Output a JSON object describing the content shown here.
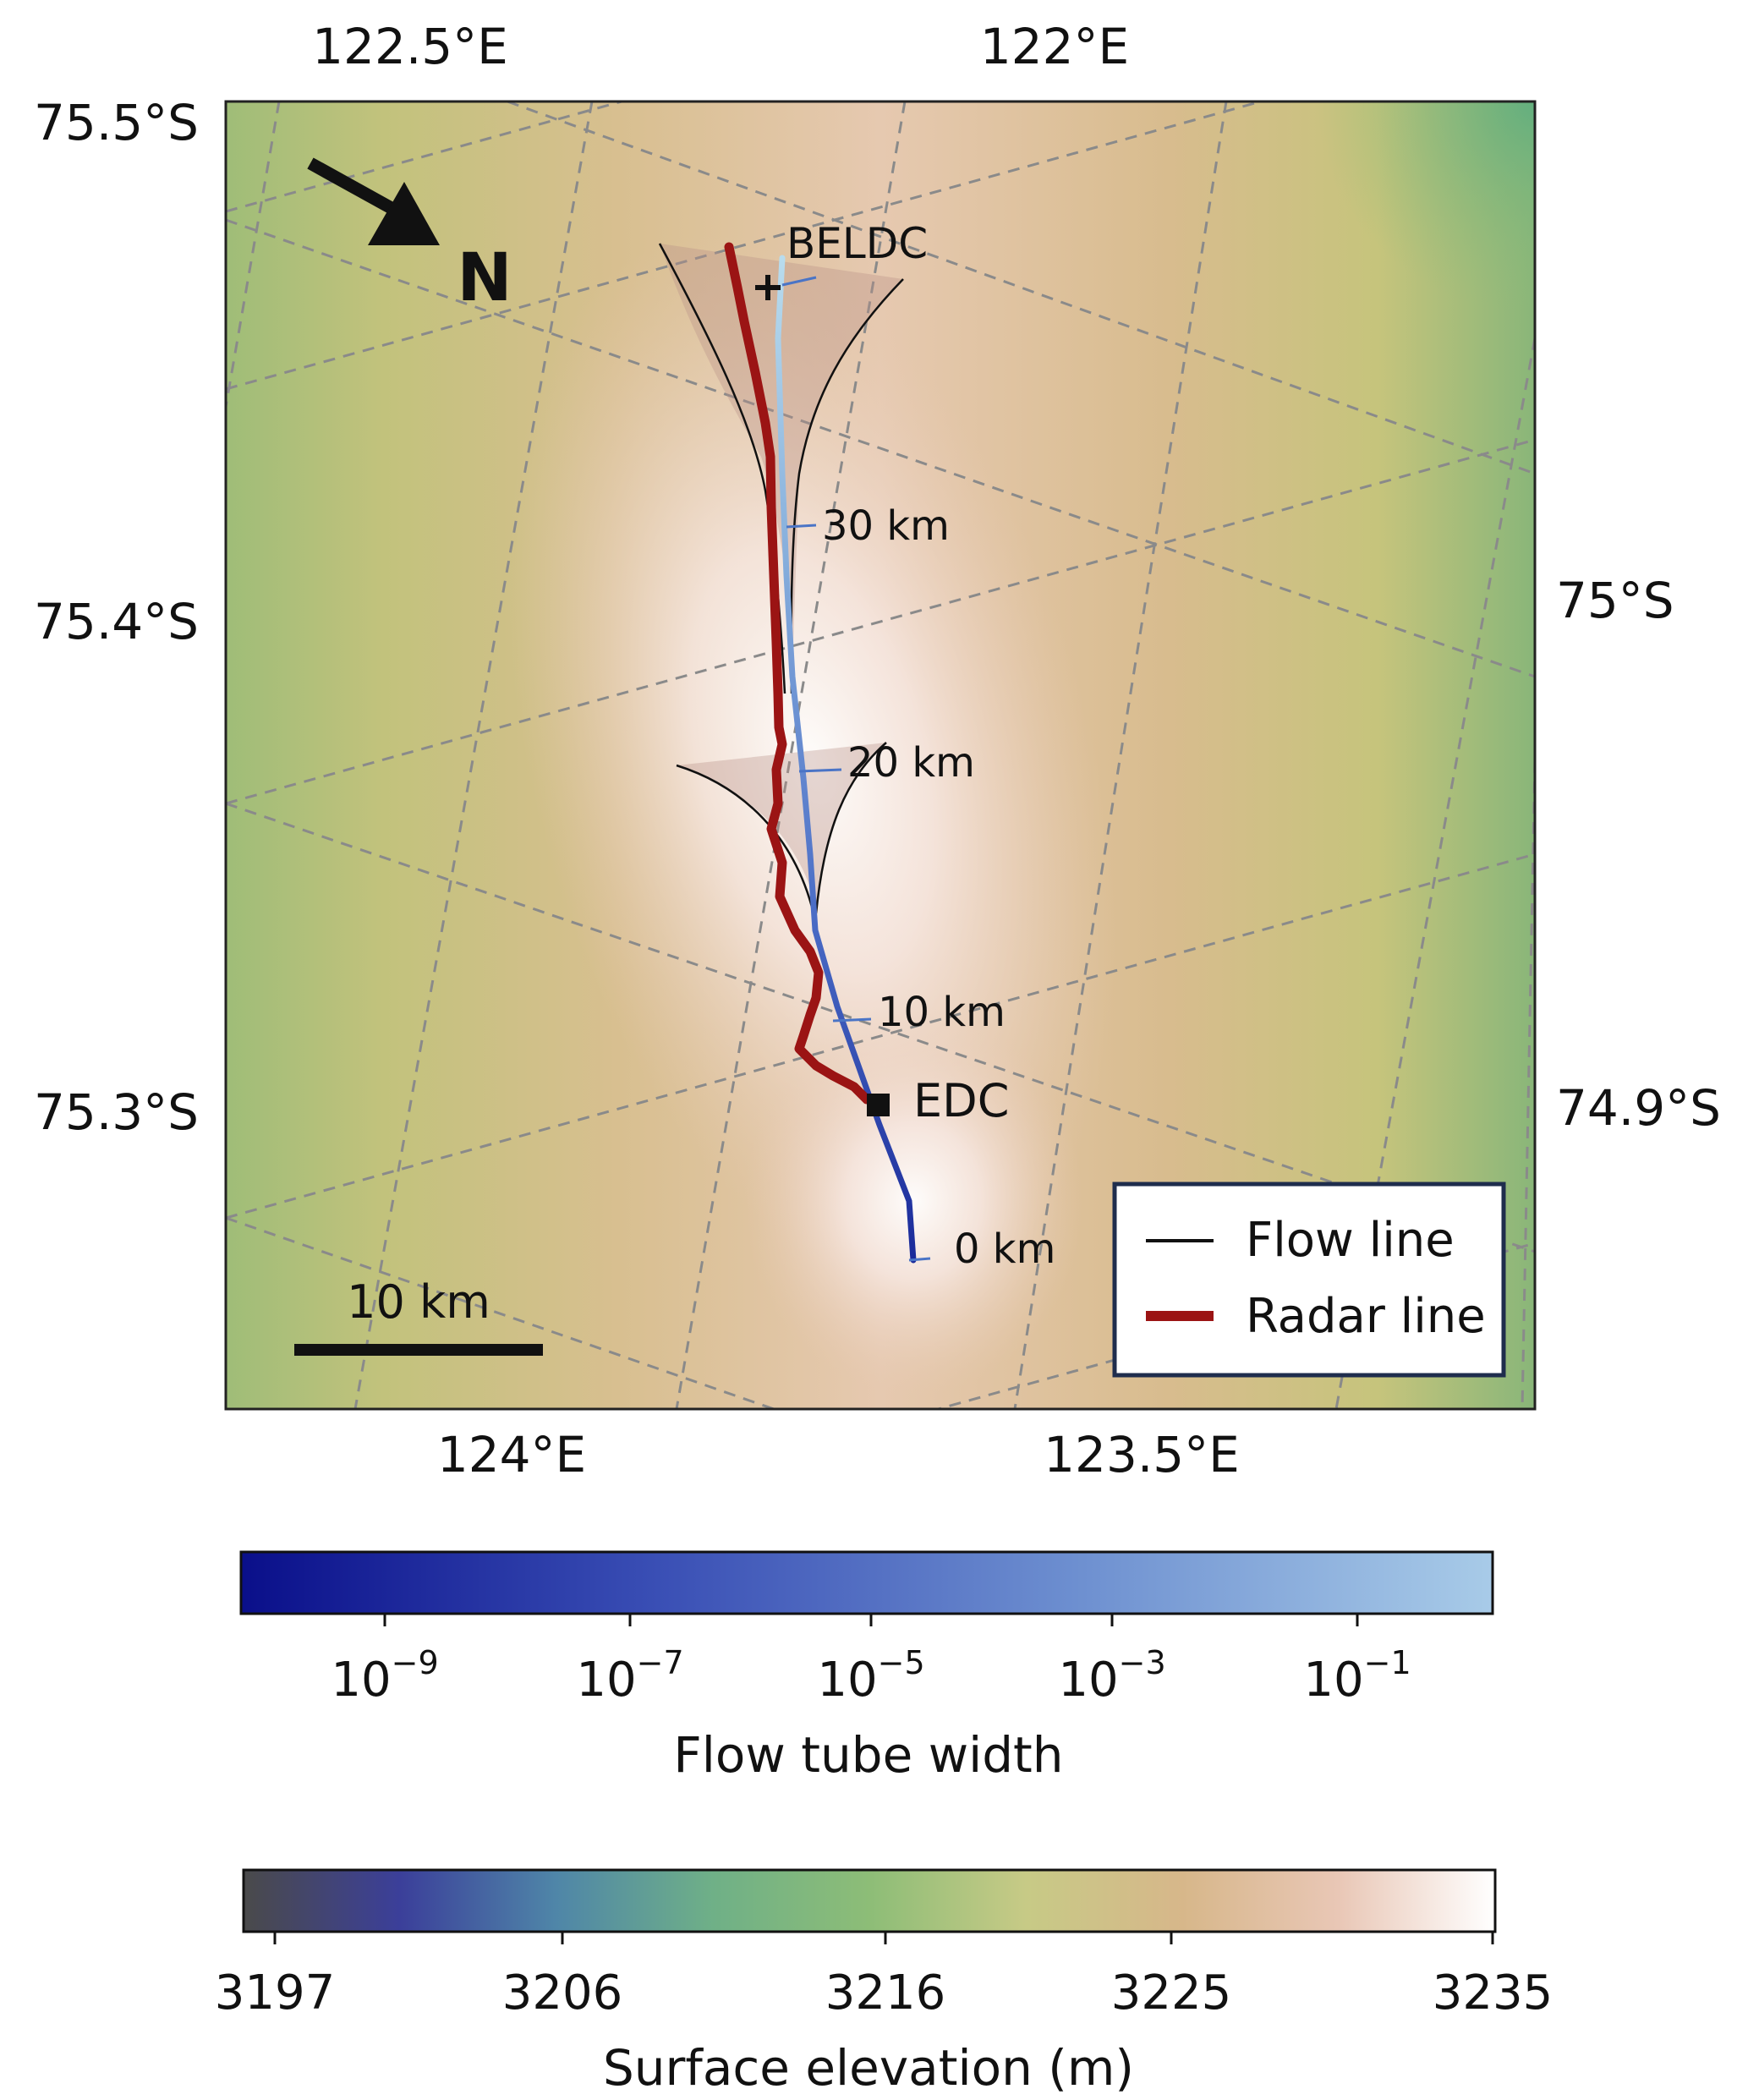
{
  "map": {
    "lat_labels_left": [
      "75.5°S",
      "75.4°S",
      "75.3°S"
    ],
    "lat_labels_right": [
      "75°S",
      "74.9°S"
    ],
    "lon_labels_top": [
      "122.5°E",
      "122°E"
    ],
    "lon_labels_bottom": [
      "124°E",
      "123.5°E"
    ],
    "north_label": "N",
    "scale_bar_label": "10 km",
    "sites": [
      {
        "name": "BELDC",
        "marker": "plus"
      },
      {
        "name": "EDC",
        "marker": "square"
      }
    ],
    "distance_labels": [
      "30 km",
      "20 km",
      "10 km",
      "0 km"
    ],
    "legend": [
      {
        "label": "Flow line",
        "color": "#111111"
      },
      {
        "label": "Radar line",
        "color": "#9b1414"
      }
    ],
    "colors": {
      "radar_line": "#9b1414",
      "flow_line": "#111111",
      "grid": "#8a8a8a",
      "legend_border": "#1f2d4d"
    }
  },
  "colorbars": [
    {
      "title": "Flow tube width",
      "scale": "log",
      "tick_labels": [
        "10^-9",
        "10^-7",
        "10^-5",
        "10^-3",
        "10^-1"
      ],
      "colors": [
        "#0a0f8a",
        "#3a4fb5",
        "#6d8fd0",
        "#a8cbe8"
      ]
    },
    {
      "title": "Surface elevation (m)",
      "tick_labels": [
        "3197",
        "3206",
        "3216",
        "3225",
        "3235"
      ],
      "colors": [
        "#4a4a4a",
        "#3b3f9a",
        "#4f86a8",
        "#6fb087",
        "#8dbd77",
        "#c7ca86",
        "#d7b78a",
        "#e9c7b6",
        "#ffffff"
      ]
    }
  ]
}
